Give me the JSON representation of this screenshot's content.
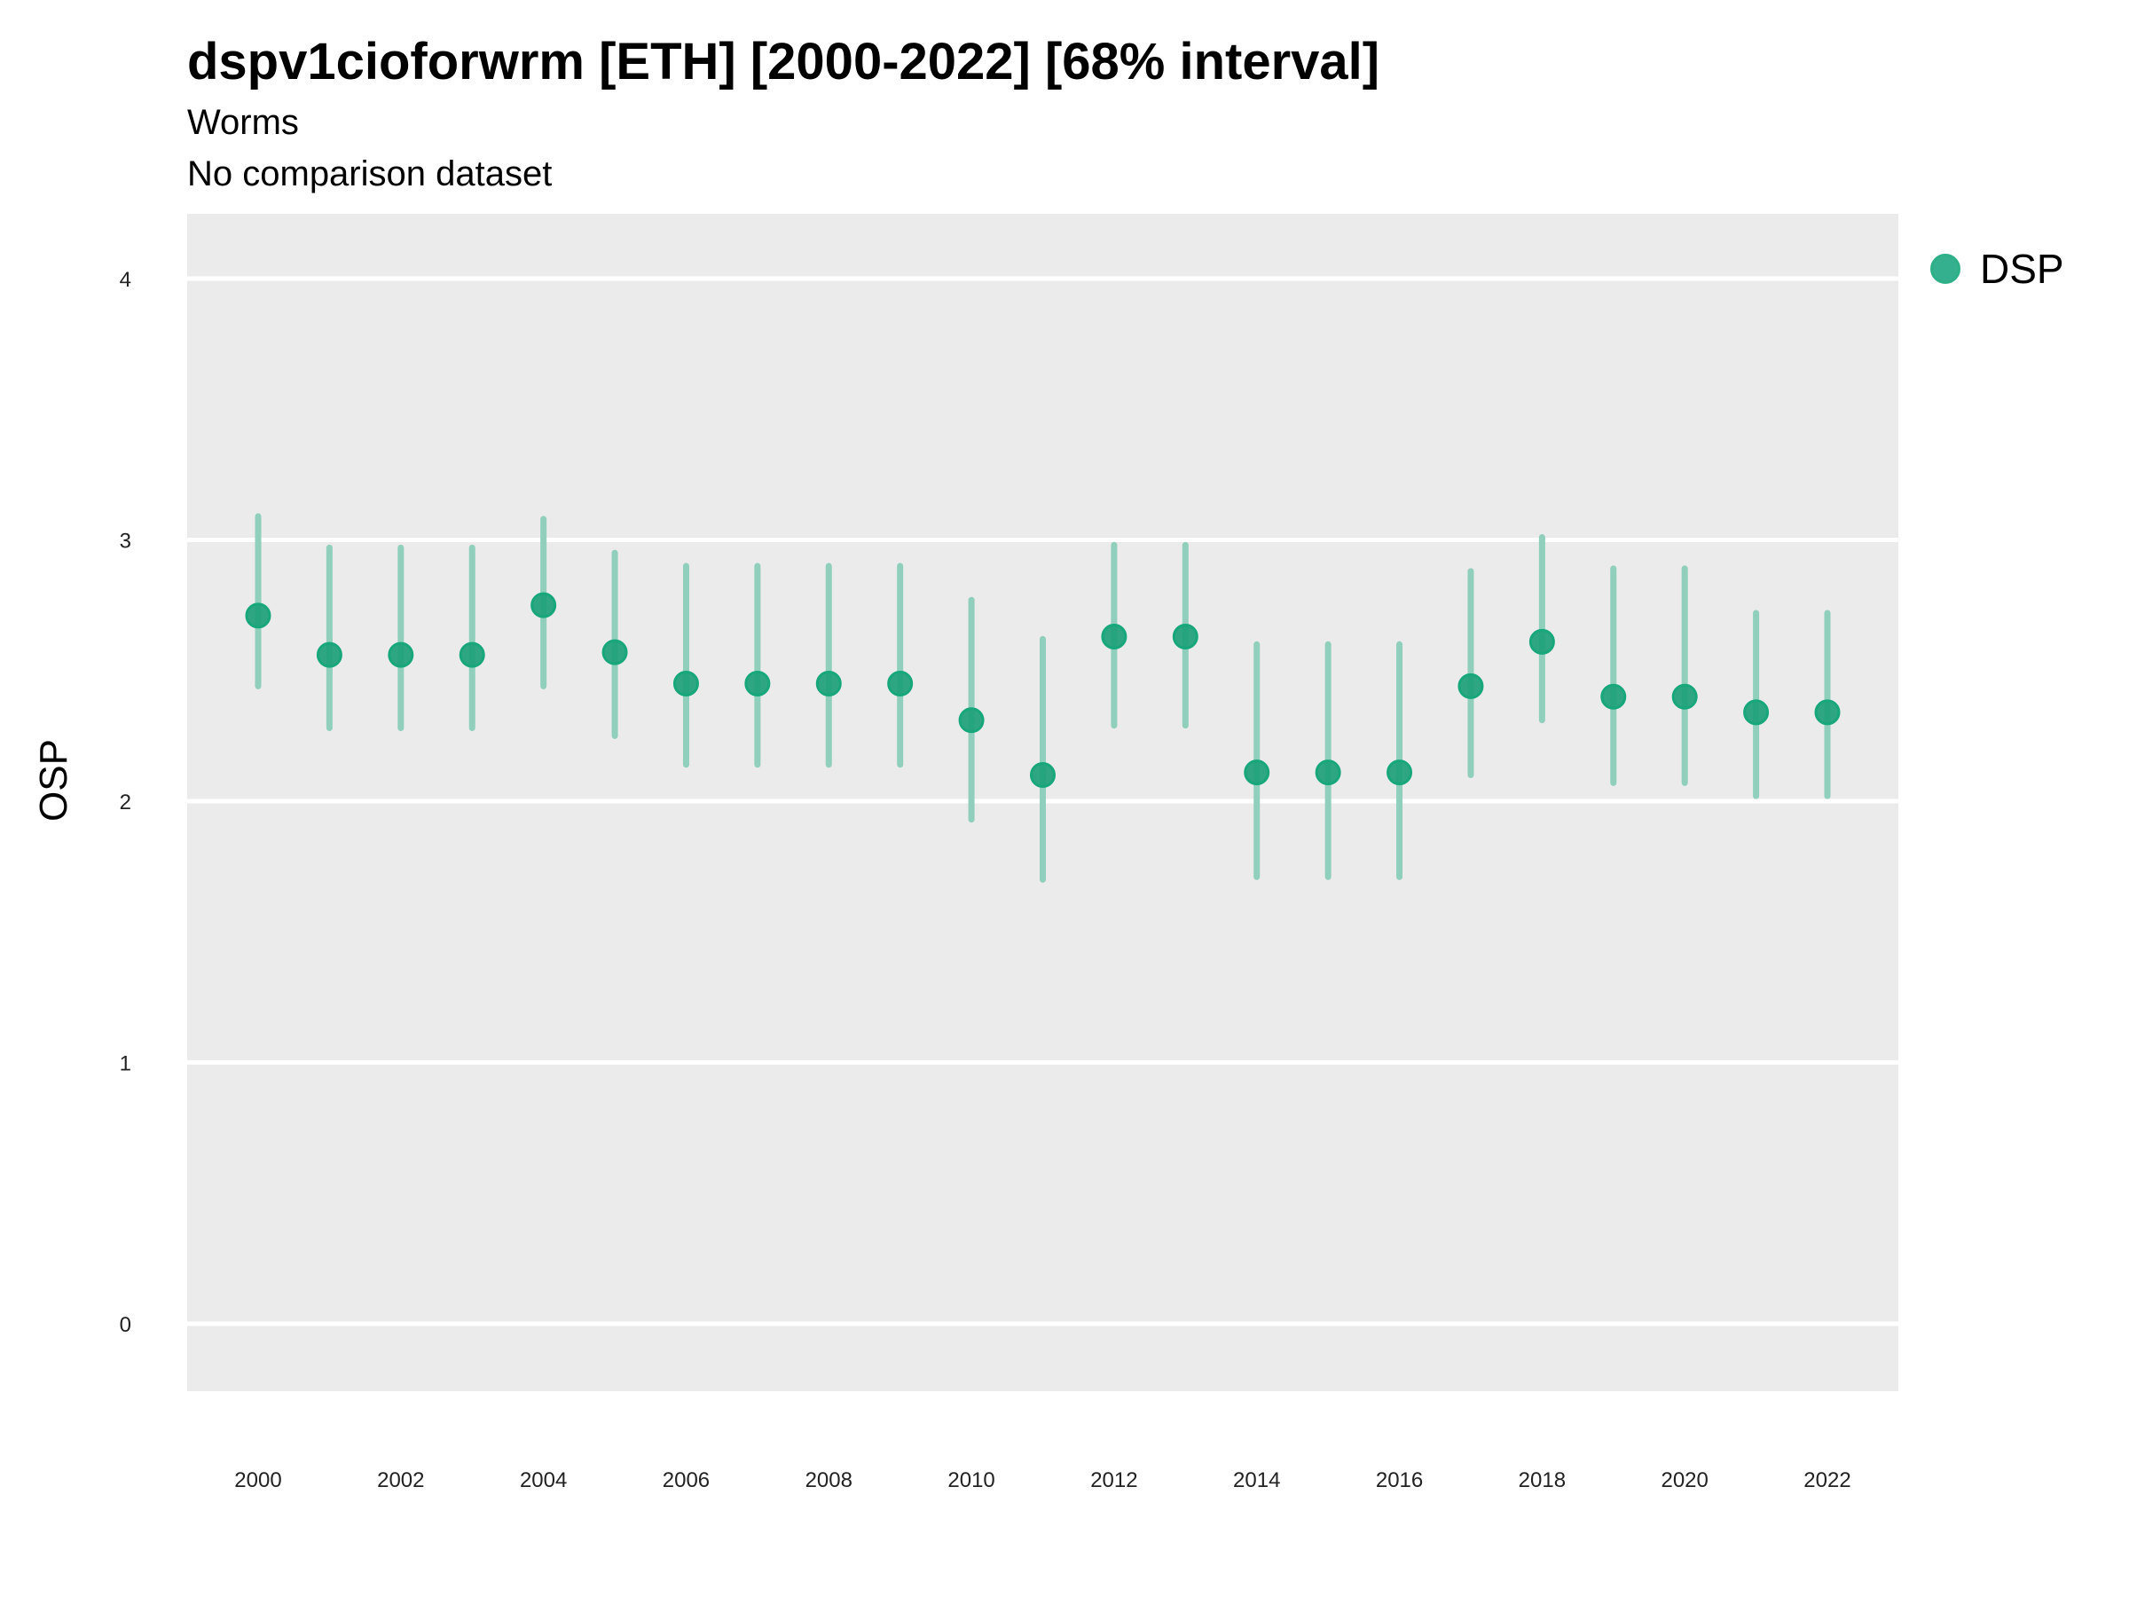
{
  "chart_data": {
    "type": "scatter",
    "title": "dspv1cioforwrm [ETH] [2000-2022] [68% interval]",
    "subtitle": "Worms",
    "caption": "No comparison dataset",
    "xlabel": "",
    "ylabel": "OSP",
    "ylim": [
      -0.25,
      4.25
    ],
    "xlim": [
      1999,
      2023
    ],
    "yticks": [
      0,
      1,
      2,
      3,
      4
    ],
    "xticks": [
      2000,
      2002,
      2004,
      2006,
      2008,
      2010,
      2012,
      2014,
      2016,
      2018,
      2020,
      2022
    ],
    "grid": true,
    "legend_position": "right",
    "colors": {
      "point": "#1b9e77",
      "interval": "#8fcfbb",
      "panel": "#ebebeb",
      "grid": "#ffffff"
    },
    "series": [
      {
        "name": "DSP",
        "x": [
          2000,
          2001,
          2002,
          2003,
          2004,
          2005,
          2006,
          2007,
          2008,
          2009,
          2010,
          2011,
          2012,
          2013,
          2014,
          2015,
          2016,
          2017,
          2018,
          2019,
          2020,
          2021,
          2022
        ],
        "y": [
          2.71,
          2.56,
          2.56,
          2.56,
          2.75,
          2.57,
          2.45,
          2.45,
          2.45,
          2.45,
          2.31,
          2.1,
          2.63,
          2.63,
          2.11,
          2.11,
          2.11,
          2.44,
          2.61,
          2.4,
          2.4,
          2.34,
          2.34
        ],
        "lower": [
          2.44,
          2.28,
          2.28,
          2.28,
          2.44,
          2.25,
          2.14,
          2.14,
          2.14,
          2.14,
          1.93,
          1.7,
          2.29,
          2.29,
          1.71,
          1.71,
          1.71,
          2.1,
          2.31,
          2.07,
          2.07,
          2.02,
          2.02
        ],
        "upper": [
          3.09,
          2.97,
          2.97,
          2.97,
          3.08,
          2.95,
          2.9,
          2.9,
          2.9,
          2.9,
          2.77,
          2.62,
          2.98,
          2.98,
          2.6,
          2.6,
          2.6,
          2.88,
          3.01,
          2.89,
          2.89,
          2.72,
          2.72
        ]
      }
    ]
  }
}
